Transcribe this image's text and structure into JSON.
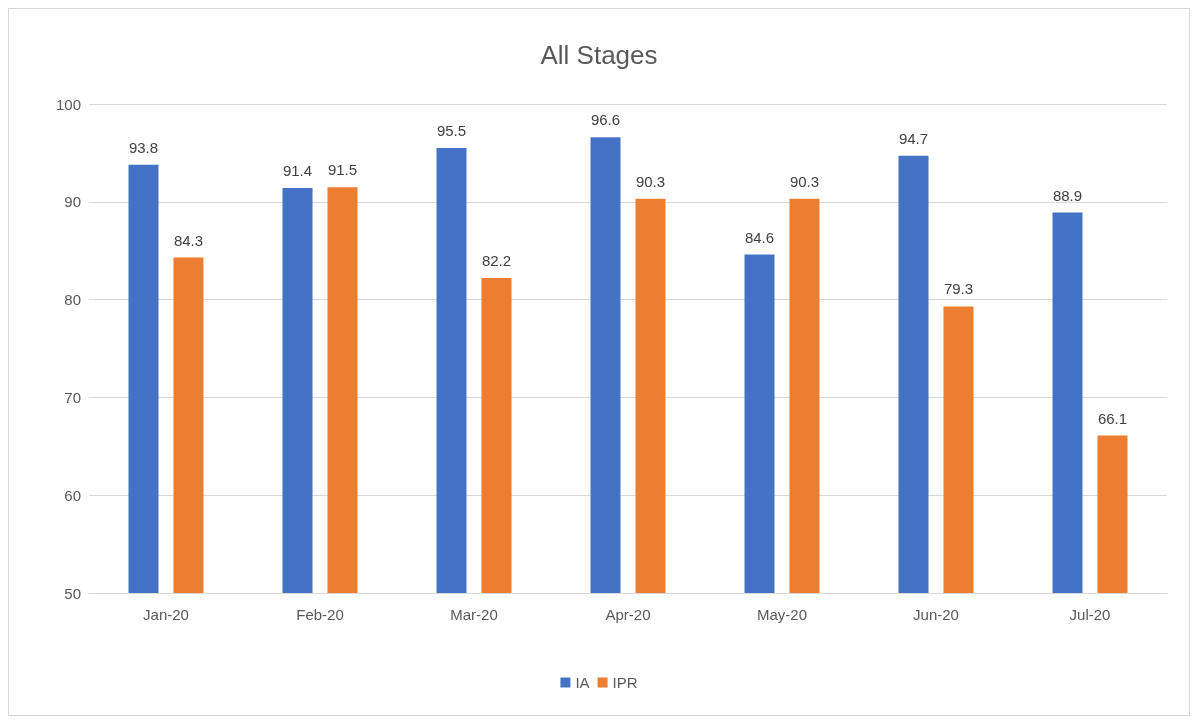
{
  "chart_data": {
    "type": "bar",
    "title": "All Stages",
    "categories": [
      "Jan-20",
      "Feb-20",
      "Mar-20",
      "Apr-20",
      "May-20",
      "Jun-20",
      "Jul-20"
    ],
    "series": [
      {
        "name": "IA",
        "color": "#4472c4",
        "values": [
          93.8,
          91.4,
          95.5,
          96.6,
          84.6,
          94.7,
          88.9
        ]
      },
      {
        "name": "IPR",
        "color": "#ed7d31",
        "values": [
          84.3,
          91.5,
          82.2,
          90.3,
          90.3,
          79.3,
          66.1
        ]
      }
    ],
    "ylim": [
      50,
      100
    ],
    "yticks": [
      50,
      60,
      70,
      80,
      90,
      100
    ],
    "grid": "y",
    "legend": "bottom",
    "data_labels": true
  }
}
